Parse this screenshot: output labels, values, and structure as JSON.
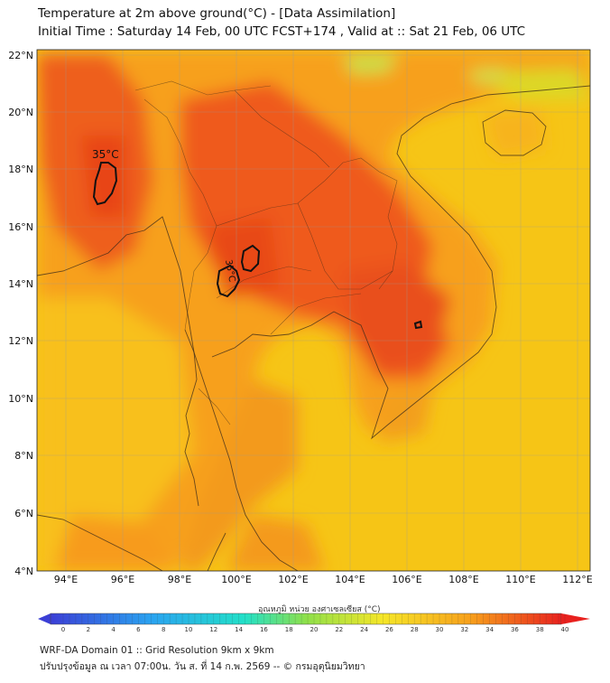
{
  "header": {
    "title_line1": "Temperature at 2m above ground(°C) - [Data Assimilation]",
    "title_line2": "Initial Time : Saturday 14 Feb, 00 UTC FCST+174 , Valid at :: Sat 21 Feb, 06 UTC"
  },
  "map": {
    "lat_labels": [
      "22°N",
      "20°N",
      "18°N",
      "16°N",
      "14°N",
      "12°N",
      "10°N",
      "8°N",
      "6°N",
      "4°N"
    ],
    "lon_labels": [
      "94°E",
      "96°E",
      "98°E",
      "100°E",
      "102°E",
      "104°E",
      "106°E",
      "108°E",
      "110°E",
      "112°E"
    ],
    "contour_labels": [
      "35°C",
      "35°C"
    ],
    "colors": {
      "hot": "#ef4e1a",
      "warm": "#f7951e",
      "mild": "#f9c41a",
      "cool": "#f2dd22",
      "sea": "#f5c815",
      "green_patch": "#c9e04a"
    }
  },
  "colorbar": {
    "label": "อุณหภูมิ หน่วย องศาเซลเซียส (°C)",
    "ticks": [
      "0",
      "2",
      "4",
      "6",
      "8",
      "10",
      "12",
      "14",
      "16",
      "18",
      "20",
      "22",
      "24",
      "26",
      "28",
      "30",
      "32",
      "34",
      "36",
      "38",
      "40"
    ],
    "colors": [
      "#3b3fd6",
      "#2aa4f0",
      "#22e0c8",
      "#8ee04a",
      "#f5e628",
      "#f7a11c",
      "#e8211e"
    ]
  },
  "footer": {
    "line1": "WRF-DA Domain 01 :: Grid Resolution 9km x 9km",
    "line2": "ปรับปรุงข้อมูล ณ เวลา 07:00น. วัน ส. ที่ 14 ก.พ. 2569 -- © กรมอุตุนิยมวิทยา"
  }
}
